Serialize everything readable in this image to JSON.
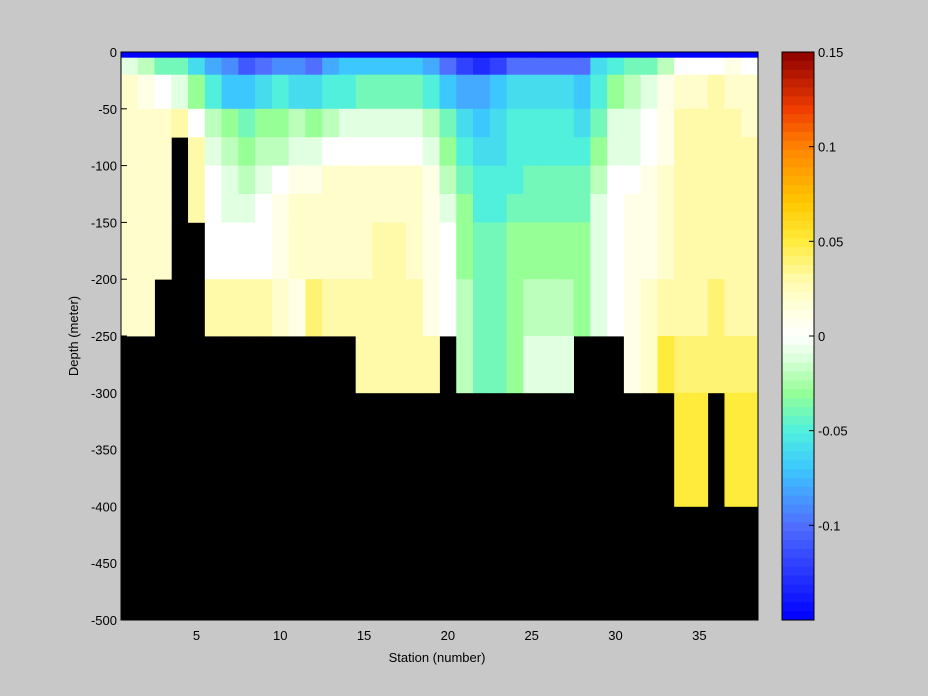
{
  "chart_data": {
    "type": "heatmap",
    "title": "",
    "xlabel": "Station (number)",
    "ylabel": "Depth (meter)",
    "xlim": [
      1,
      38
    ],
    "ylim": [
      -500,
      0
    ],
    "x_ticks": [
      5,
      10,
      15,
      20,
      25,
      30,
      35
    ],
    "y_ticks": [
      0,
      -50,
      -100,
      -150,
      -200,
      -250,
      -300,
      -350,
      -400,
      -450,
      -500
    ],
    "colorbar": {
      "range": [
        -0.15,
        0.15
      ],
      "ticks": [
        0.15,
        0.1,
        0.05,
        0,
        -0.05,
        -0.1
      ],
      "tick_labels": [
        "0.15",
        "0.1",
        "0.05",
        "0",
        "-0.05",
        "-0.1"
      ],
      "colormap": "jet-like with white center"
    },
    "depth_bins": [
      [
        0,
        -5
      ],
      [
        -5,
        -20
      ],
      [
        -20,
        -50
      ],
      [
        -50,
        -75
      ],
      [
        -75,
        -100
      ],
      [
        -100,
        -125
      ],
      [
        -125,
        -150
      ],
      [
        -150,
        -200
      ],
      [
        -200,
        -250
      ],
      [
        -250,
        -300
      ],
      [
        -300,
        -400
      ],
      [
        -400,
        -500
      ]
    ],
    "stations": [
      1,
      2,
      3,
      4,
      5,
      6,
      7,
      8,
      9,
      10,
      11,
      12,
      13,
      14,
      15,
      16,
      17,
      18,
      19,
      20,
      21,
      22,
      23,
      24,
      25,
      26,
      27,
      28,
      29,
      30,
      31,
      32,
      33,
      34,
      35,
      36,
      37,
      38
    ],
    "bottom_depth": [
      -250,
      -250,
      -200,
      -75,
      -150,
      -250,
      -250,
      -250,
      -250,
      -250,
      -250,
      -250,
      -250,
      -250,
      -300,
      -300,
      -300,
      -300,
      -300,
      -250,
      -300,
      -300,
      -300,
      -300,
      -300,
      -300,
      -300,
      -250,
      -250,
      -250,
      -300,
      -300,
      -300,
      -400,
      -400,
      -300,
      -400,
      -400
    ],
    "values": [
      [
        -0.15,
        -0.15,
        -0.15,
        -0.15,
        -0.15,
        -0.15,
        -0.15,
        -0.15,
        -0.15,
        -0.15,
        -0.15,
        -0.15,
        -0.15,
        -0.15,
        -0.15,
        -0.15,
        -0.15,
        -0.15,
        -0.15,
        -0.15,
        -0.15,
        -0.15,
        -0.15,
        -0.15,
        -0.15,
        -0.15,
        -0.15,
        -0.15,
        -0.15,
        -0.15,
        -0.15,
        -0.15,
        -0.15,
        -0.15,
        -0.15,
        -0.15,
        -0.15,
        -0.15
      ],
      [
        -0.01,
        -0.02,
        -0.04,
        -0.04,
        -0.06,
        -0.08,
        -0.09,
        -0.11,
        -0.1,
        -0.09,
        -0.09,
        -0.1,
        -0.08,
        -0.07,
        -0.07,
        -0.07,
        -0.07,
        -0.07,
        -0.08,
        -0.1,
        -0.12,
        -0.13,
        -0.12,
        -0.1,
        -0.1,
        -0.1,
        -0.1,
        -0.1,
        -0.06,
        -0.05,
        -0.04,
        -0.04,
        -0.02,
        0.0,
        0.0,
        0.0,
        0.01,
        0.0
      ],
      [
        0.02,
        0.01,
        0.0,
        -0.01,
        -0.03,
        -0.05,
        -0.07,
        -0.07,
        -0.06,
        -0.05,
        -0.06,
        -0.06,
        -0.05,
        -0.05,
        -0.04,
        -0.04,
        -0.04,
        -0.04,
        -0.05,
        -0.07,
        -0.08,
        -0.08,
        -0.07,
        -0.06,
        -0.06,
        -0.06,
        -0.06,
        -0.07,
        -0.05,
        -0.03,
        -0.02,
        -0.01,
        0.01,
        0.02,
        0.02,
        0.03,
        0.02,
        0.02
      ],
      [
        0.02,
        0.02,
        0.02,
        0.03,
        0.0,
        -0.02,
        -0.03,
        -0.04,
        -0.03,
        -0.03,
        -0.02,
        -0.03,
        -0.02,
        -0.01,
        -0.01,
        -0.01,
        -0.01,
        -0.01,
        -0.02,
        -0.04,
        -0.06,
        -0.07,
        -0.06,
        -0.05,
        -0.05,
        -0.05,
        -0.05,
        -0.06,
        -0.04,
        -0.01,
        -0.01,
        0.0,
        0.01,
        0.03,
        0.03,
        0.03,
        0.03,
        0.02
      ],
      [
        0.02,
        0.02,
        0.02,
        0.03,
        0.03,
        -0.01,
        -0.02,
        -0.03,
        -0.02,
        -0.02,
        -0.01,
        -0.01,
        0.0,
        0.0,
        0.0,
        0.0,
        0.0,
        0.0,
        -0.01,
        -0.03,
        -0.05,
        -0.06,
        -0.06,
        -0.05,
        -0.05,
        -0.05,
        -0.05,
        -0.05,
        -0.03,
        -0.01,
        -0.01,
        0.0,
        0.01,
        0.03,
        0.03,
        0.03,
        0.03,
        0.03
      ],
      [
        0.02,
        0.02,
        0.02,
        0.03,
        0.03,
        0.0,
        -0.01,
        -0.02,
        -0.01,
        0.0,
        0.01,
        0.01,
        0.02,
        0.02,
        0.02,
        0.02,
        0.02,
        0.02,
        0.01,
        -0.02,
        -0.04,
        -0.05,
        -0.05,
        -0.05,
        -0.04,
        -0.04,
        -0.04,
        -0.04,
        -0.02,
        0.0,
        0.0,
        0.01,
        0.02,
        0.03,
        0.03,
        0.03,
        0.03,
        0.03
      ],
      [
        0.02,
        0.02,
        0.02,
        0.03,
        0.03,
        0.0,
        -0.01,
        -0.01,
        0.0,
        0.01,
        0.02,
        0.02,
        0.02,
        0.02,
        0.02,
        0.02,
        0.02,
        0.02,
        0.01,
        -0.01,
        -0.03,
        -0.05,
        -0.05,
        -0.04,
        -0.04,
        -0.04,
        -0.04,
        -0.04,
        -0.01,
        0.0,
        0.01,
        0.01,
        0.02,
        0.03,
        0.03,
        0.03,
        0.03,
        0.03
      ],
      [
        0.02,
        0.02,
        0.02,
        0.03,
        0.03,
        0.0,
        0.0,
        0.0,
        0.0,
        0.01,
        0.02,
        0.02,
        0.02,
        0.02,
        0.02,
        0.03,
        0.03,
        0.02,
        0.01,
        0.0,
        -0.03,
        -0.04,
        -0.04,
        -0.03,
        -0.03,
        -0.03,
        -0.03,
        -0.03,
        -0.01,
        0.0,
        0.01,
        0.01,
        0.02,
        0.03,
        0.03,
        0.03,
        0.03,
        0.03
      ],
      [
        0.02,
        0.02,
        0.02,
        0.03,
        0.03,
        0.03,
        0.03,
        0.03,
        0.03,
        0.02,
        0.01,
        0.04,
        0.03,
        0.03,
        0.03,
        0.03,
        0.03,
        0.03,
        0.01,
        0.0,
        -0.02,
        -0.04,
        -0.04,
        -0.03,
        -0.02,
        -0.02,
        -0.02,
        -0.03,
        -0.01,
        0.0,
        0.01,
        0.02,
        0.03,
        0.03,
        0.03,
        0.04,
        0.03,
        0.03
      ],
      [
        0.02,
        0.02,
        0.02,
        0.03,
        0.03,
        0.03,
        0.03,
        0.03,
        0.03,
        0.03,
        0.03,
        0.03,
        0.03,
        0.03,
        0.03,
        0.03,
        0.03,
        0.03,
        0.03,
        0.0,
        -0.02,
        -0.04,
        -0.04,
        -0.03,
        -0.01,
        -0.01,
        -0.01,
        -0.05,
        -0.01,
        0.0,
        0.01,
        0.02,
        0.05,
        0.04,
        0.04,
        0.04,
        0.04,
        0.04
      ],
      [
        0.02,
        0.02,
        0.02,
        0.03,
        0.03,
        0.03,
        0.03,
        0.03,
        0.03,
        0.03,
        0.03,
        0.03,
        0.03,
        0.03,
        0.03,
        0.03,
        0.03,
        0.03,
        0.03,
        0.0,
        -0.02,
        -0.04,
        -0.04,
        -0.03,
        -0.01,
        -0.01,
        -0.01,
        -0.05,
        -0.01,
        0.0,
        0.01,
        0.02,
        0.05,
        0.05,
        0.05,
        0.05,
        0.05,
        0.05
      ],
      [
        0.02,
        0.02,
        0.02,
        0.03,
        0.03,
        0.03,
        0.03,
        0.03,
        0.03,
        0.03,
        0.03,
        0.03,
        0.03,
        0.03,
        0.03,
        0.03,
        0.03,
        0.03,
        0.03,
        0.0,
        -0.02,
        -0.04,
        -0.04,
        -0.03,
        -0.01,
        -0.01,
        -0.01,
        -0.05,
        -0.01,
        0.0,
        0.01,
        0.02,
        0.05,
        0.05,
        0.05,
        0.05,
        0.05,
        0.05
      ]
    ]
  }
}
